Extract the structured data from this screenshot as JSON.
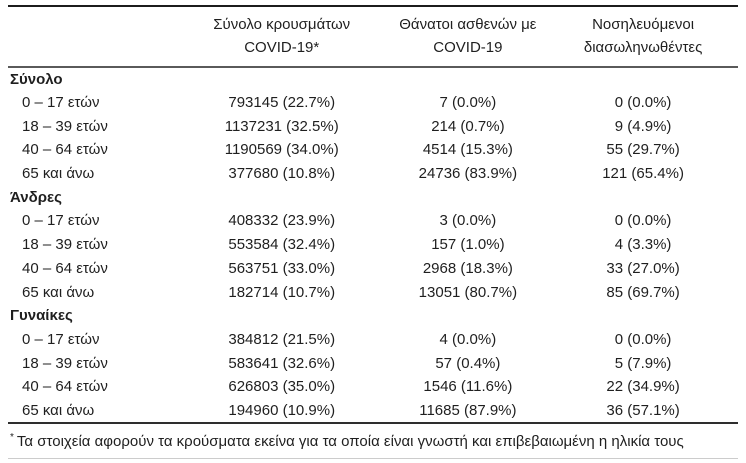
{
  "table": {
    "columns": [
      {
        "key": "cases",
        "label_line1": "Σύνολο κρουσμάτων",
        "label_line2": "COVID-19*"
      },
      {
        "key": "deaths",
        "label_line1": "Θάνατοι ασθενών με",
        "label_line2": "COVID-19"
      },
      {
        "key": "intubated",
        "label_line1": "Νοσηλευόμενοι",
        "label_line2": "διασωληνωθέντες"
      }
    ],
    "groups": [
      {
        "label": "Σύνολο",
        "rows": [
          {
            "label": "0 – 17 ετών",
            "cases": "793145 (22.7%)",
            "deaths": "7 (0.0%)",
            "intubated": "0 (0.0%)"
          },
          {
            "label": "18 – 39 ετών",
            "cases": "1137231 (32.5%)",
            "deaths": "214 (0.7%)",
            "intubated": "9 (4.9%)"
          },
          {
            "label": "40 – 64 ετών",
            "cases": "1190569 (34.0%)",
            "deaths": "4514 (15.3%)",
            "intubated": "55 (29.7%)"
          },
          {
            "label": "65 και άνω",
            "cases": "377680 (10.8%)",
            "deaths": "24736 (83.9%)",
            "intubated": "121 (65.4%)"
          }
        ]
      },
      {
        "label": "Άνδρες",
        "rows": [
          {
            "label": "0 – 17 ετών",
            "cases": "408332 (23.9%)",
            "deaths": "3 (0.0%)",
            "intubated": "0 (0.0%)"
          },
          {
            "label": "18 – 39 ετών",
            "cases": "553584 (32.4%)",
            "deaths": "157 (1.0%)",
            "intubated": "4 (3.3%)"
          },
          {
            "label": "40 – 64 ετών",
            "cases": "563751 (33.0%)",
            "deaths": "2968 (18.3%)",
            "intubated": "33 (27.0%)"
          },
          {
            "label": "65 και άνω",
            "cases": "182714 (10.7%)",
            "deaths": "13051 (80.7%)",
            "intubated": "85 (69.7%)"
          }
        ]
      },
      {
        "label": "Γυναίκες",
        "rows": [
          {
            "label": "0 – 17 ετών",
            "cases": "384812 (21.5%)",
            "deaths": "4 (0.0%)",
            "intubated": "0 (0.0%)"
          },
          {
            "label": "18 – 39 ετών",
            "cases": "583641 (32.6%)",
            "deaths": "57 (0.4%)",
            "intubated": "5 (7.9%)"
          },
          {
            "label": "40 – 64 ετών",
            "cases": "626803 (35.0%)",
            "deaths": "1546 (11.6%)",
            "intubated": "22 (34.9%)"
          },
          {
            "label": "65 και άνω",
            "cases": "194960 (10.9%)",
            "deaths": "11685 (87.9%)",
            "intubated": "36 (57.1%)"
          }
        ]
      }
    ],
    "footnote": {
      "marker": "*",
      "text": "Τα στοιχεία αφορούν τα κρούσματα εκείνα για τα οποία είναι γνωστή και επιβεβαιωμένη η ηλικία τους"
    }
  },
  "colors": {
    "background": "#ffffff",
    "text": "#1f1f1f",
    "rule_top": "#1c1c1c",
    "rule_header": "#5a5a5a",
    "rule_footnote_top": "#2e2e2e",
    "rule_bottom": "#cccccc"
  }
}
